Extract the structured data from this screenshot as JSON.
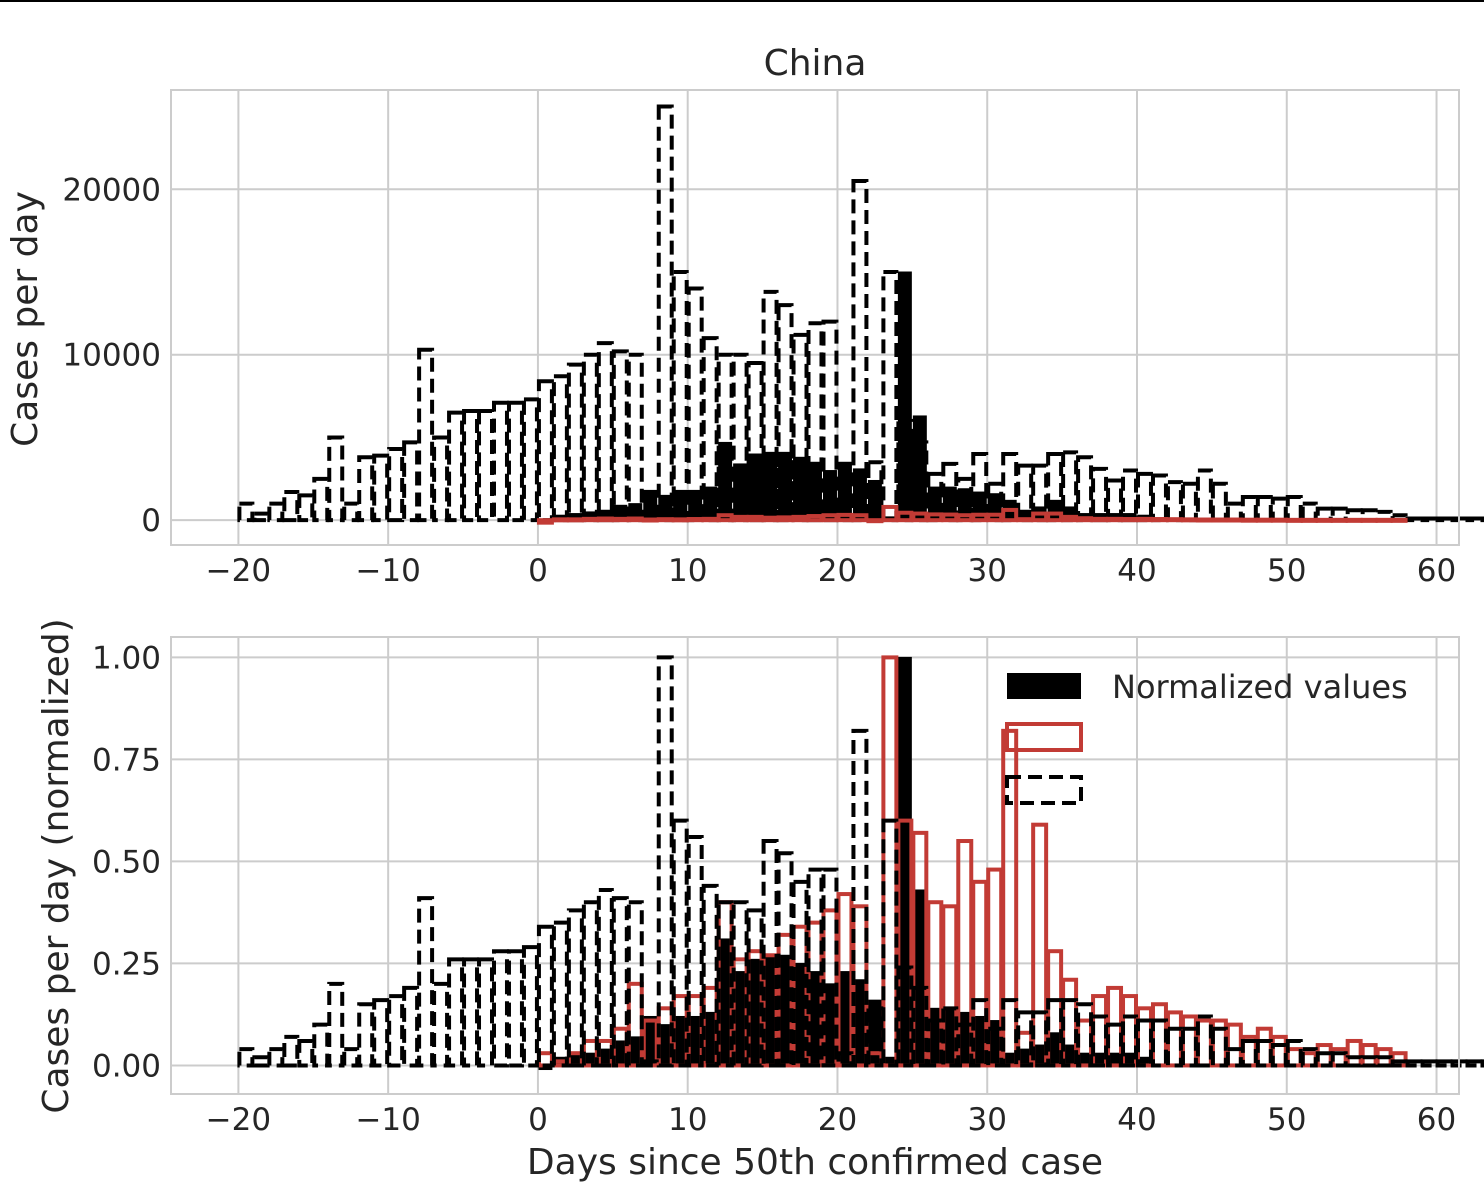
{
  "chart_data": [
    {
      "type": "bar",
      "title": "China",
      "xlabel": "",
      "ylabel": "Cases per day",
      "xlim": [
        -24.5,
        61.5
      ],
      "ylim": [
        -1500,
        26000
      ],
      "xticks": [
        -20,
        -10,
        0,
        10,
        20,
        30,
        40,
        50,
        60
      ],
      "xtick_labels": [
        "−20",
        "−10",
        "0",
        "10",
        "20",
        "30",
        "40",
        "50",
        "60"
      ],
      "yticks": [
        0,
        10000,
        20000
      ],
      "ytick_labels": [
        "0",
        "10000",
        "20000"
      ],
      "grid": true,
      "series": [
        {
          "style": "black dashed outline",
          "x_start": -20,
          "values": [
            1000,
            400,
            1000,
            1700,
            1500,
            2500,
            5000,
            1000,
            3800,
            3900,
            4300,
            4700,
            10300,
            5000,
            6500,
            6600,
            6600,
            7100,
            7100,
            7300,
            8400,
            8700,
            9400,
            10000,
            10700,
            10200,
            10000,
            300,
            25000,
            15000,
            14000,
            11000,
            10000,
            10000,
            9500,
            13800,
            13000,
            11200,
            11900,
            12000,
            800,
            20500,
            3500,
            15000,
            6000,
            4700,
            2800,
            3400,
            2500,
            4000,
            2200,
            4000,
            3300,
            3300,
            4000,
            4100,
            3800,
            3100,
            2400,
            3000,
            2800,
            2700,
            2300,
            2200,
            3000,
            2200,
            1000,
            1400,
            1400,
            1300,
            1400,
            1000,
            700,
            700,
            600,
            600,
            500,
            300,
            100,
            100,
            100,
            100,
            100,
            100,
            100,
            100,
            100,
            100,
            100,
            100,
            100,
            100,
            100,
            100,
            100,
            100,
            100,
            100
          ]
        },
        {
          "style": "black filled",
          "x_start": 0,
          "values": [
            -200,
            300,
            400,
            500,
            600,
            900,
            1000,
            1800,
            1500,
            1800,
            1800,
            2000,
            4700,
            3400,
            4000,
            4100,
            4100,
            3800,
            3500,
            3000,
            3500,
            3100,
            2400,
            200,
            15000,
            6300,
            2000,
            2000,
            1900,
            1700,
            1600,
            1200,
            600,
            800,
            1200,
            800,
            400,
            400,
            400,
            400,
            300
          ]
        },
        {
          "style": "red outline",
          "x_start": 0,
          "values": [
            -150,
            50,
            50,
            80,
            100,
            80,
            100,
            40,
            60,
            50,
            70,
            80,
            300,
            200,
            200,
            150,
            170,
            200,
            250,
            300,
            320,
            300,
            0,
            800,
            450,
            400,
            350,
            340,
            300,
            330,
            330,
            620,
            60,
            400,
            400,
            200,
            120,
            80,
            80,
            70,
            80,
            70,
            60,
            50,
            40,
            40,
            40,
            30,
            30,
            30,
            20,
            20,
            20,
            20,
            20,
            20,
            20,
            20
          ]
        }
      ]
    },
    {
      "type": "bar",
      "title": "",
      "xlabel": "Days since 50th confirmed case",
      "ylabel": "Cases per day (normalized)",
      "xlim": [
        -24.5,
        61.5
      ],
      "ylim": [
        -0.07,
        1.05
      ],
      "xticks": [
        -20,
        -10,
        0,
        10,
        20,
        30,
        40,
        50,
        60
      ],
      "xtick_labels": [
        "−20",
        "−10",
        "0",
        "10",
        "20",
        "30",
        "40",
        "50",
        "60"
      ],
      "yticks": [
        0,
        0.25,
        0.5,
        0.75,
        1.0
      ],
      "ytick_labels": [
        "0.00",
        "0.25",
        "0.50",
        "0.75",
        "1.00"
      ],
      "grid": true,
      "legend": {
        "placement": "top-right",
        "entries": [
          "Normalized values",
          "",
          ""
        ]
      },
      "series": [
        {
          "name": "Normalized values",
          "style": "black filled",
          "x_start": 0,
          "values": [
            -0.01,
            0.02,
            0.03,
            0.03,
            0.04,
            0.06,
            0.07,
            0.12,
            0.1,
            0.12,
            0.12,
            0.13,
            0.31,
            0.23,
            0.26,
            0.27,
            0.27,
            0.25,
            0.23,
            0.2,
            0.23,
            0.21,
            0.16,
            0.02,
            1.0,
            0.43,
            0.14,
            0.14,
            0.13,
            0.12,
            0.11,
            0.03,
            0.04,
            0.05,
            0.08,
            0.05,
            0.03,
            0.03,
            0.03,
            0.03,
            0.02
          ]
        },
        {
          "style": "red outline",
          "x_start": 0,
          "values": [
            0.03,
            0.01,
            0.03,
            0.06,
            0.06,
            0.09,
            0.2,
            0.11,
            0.14,
            0.17,
            0.17,
            0.19,
            0.4,
            0.26,
            0.28,
            0.27,
            0.32,
            0.34,
            0.35,
            0.38,
            0.42,
            0.39,
            0.03,
            1.0,
            0.6,
            0.57,
            0.4,
            0.39,
            0.55,
            0.45,
            0.48,
            0.82,
            0.08,
            0.59,
            0.28,
            0.21,
            0.11,
            0.17,
            0.19,
            0.17,
            0.14,
            0.15,
            0.13,
            0.12,
            0.11,
            0.11,
            0.1,
            0.07,
            0.09,
            0.07,
            0.04,
            0.03,
            0.05,
            0.04,
            0.06,
            0.05,
            0.04,
            0.03
          ]
        },
        {
          "style": "black dashed outline",
          "x_start": -20,
          "values": [
            0.04,
            0.02,
            0.04,
            0.07,
            0.06,
            0.1,
            0.2,
            0.04,
            0.15,
            0.16,
            0.17,
            0.19,
            0.41,
            0.2,
            0.26,
            0.26,
            0.26,
            0.28,
            0.28,
            0.29,
            0.34,
            0.35,
            0.38,
            0.4,
            0.43,
            0.41,
            0.4,
            0.01,
            1.0,
            0.6,
            0.56,
            0.44,
            0.4,
            0.4,
            0.38,
            0.55,
            0.52,
            0.45,
            0.48,
            0.48,
            0.03,
            0.82,
            0.14,
            0.6,
            0.24,
            0.19,
            0.11,
            0.14,
            0.1,
            0.16,
            0.09,
            0.16,
            0.13,
            0.13,
            0.16,
            0.16,
            0.15,
            0.12,
            0.1,
            0.12,
            0.11,
            0.11,
            0.09,
            0.09,
            0.12,
            0.09,
            0.04,
            0.06,
            0.06,
            0.05,
            0.06,
            0.04,
            0.03,
            0.03,
            0.02,
            0.02,
            0.02,
            0.01,
            0.01,
            0.01,
            0.01,
            0.01,
            0.01,
            0.01,
            0.01,
            0.01,
            0.01,
            0.01,
            0.01,
            0.01,
            0.01,
            0.01,
            0.01,
            0.01,
            0.01,
            0.01,
            0.01
          ]
        }
      ]
    }
  ]
}
